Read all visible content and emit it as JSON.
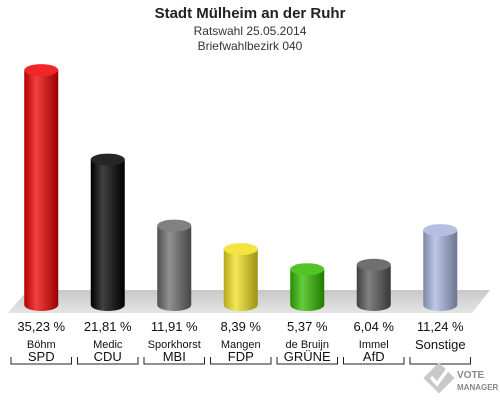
{
  "header": {
    "title": "Stadt Mülheim an der Ruhr",
    "subtitle": "Ratswahl 25.05.2014",
    "district": "Briefwahlbezirk 040"
  },
  "chart_data": {
    "type": "bar",
    "title": "Stadt Mülheim an der Ruhr",
    "subtitle": "Ratswahl 25.05.2014 · Briefwahlbezirk 040",
    "categories": [
      "SPD",
      "CDU",
      "MBI",
      "FDP",
      "GRÜNE",
      "AfD",
      "Sonstige"
    ],
    "candidates": [
      "Böhm",
      "Medic",
      "Sporkhorst",
      "Mangen",
      "de Bruijn",
      "Immel",
      ""
    ],
    "values": [
      35.23,
      21.81,
      11.91,
      8.39,
      5.37,
      6.04,
      11.24
    ],
    "value_labels": [
      "35,23 %",
      "21,81 %",
      "11,91 %",
      "8,39 %",
      "5,37 %",
      "6,04 %",
      "11,24 %"
    ],
    "colors": [
      "#ee0000",
      "#000000",
      "#6b6b6b",
      "#f0e020",
      "#33bb00",
      "#555555",
      "#a8b4dc"
    ],
    "unit": "%",
    "xlabel": "",
    "ylabel": "",
    "ylim": [
      0,
      36
    ],
    "grid": false
  },
  "logo": {
    "line1": "VOTE",
    "line2": "MANAGER"
  }
}
